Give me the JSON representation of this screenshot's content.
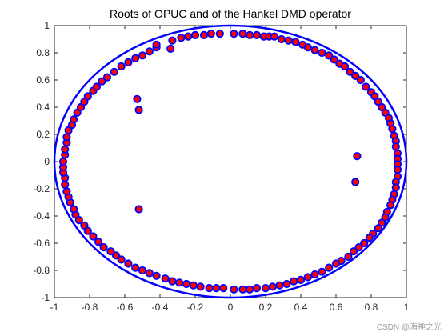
{
  "chart_data": {
    "type": "scatter",
    "title": "Roots of OPUC and of the Hankel DMD operator",
    "xlabel": "",
    "ylabel": "",
    "xlim": [
      -1,
      1
    ],
    "ylim": [
      -1,
      1
    ],
    "grid": false,
    "legend": "none",
    "x_ticks": [
      -1,
      -0.8,
      -0.6,
      -0.4,
      -0.2,
      0,
      0.2,
      0.4,
      0.6,
      0.8,
      1
    ],
    "y_ticks": [
      -1,
      -0.8,
      -0.6,
      -0.4,
      -0.2,
      0,
      0.2,
      0.4,
      0.6,
      0.8,
      1
    ],
    "x_tick_labels": [
      "-1",
      "-0.8",
      "-0.6",
      "-0.4",
      "-0.2",
      "0",
      "0.2",
      "0.4",
      "0.6",
      "0.8",
      "1"
    ],
    "y_tick_labels": [
      "-1",
      "-0.8",
      "-0.6",
      "-0.4",
      "-0.2",
      "0",
      "0.2",
      "0.4",
      "0.6",
      "0.8",
      "1"
    ],
    "unit_circle": {
      "center": [
        0,
        0
      ],
      "radius": 1,
      "color": "#0000ff"
    },
    "series": [
      {
        "marker": "circle-filled-red-blue-edge",
        "face_color": "#ff0000",
        "edge_color": "#0000ff",
        "points": [
          [
            0.02,
            0.94
          ],
          [
            0.07,
            0.94
          ],
          [
            0.11,
            0.93
          ],
          [
            0.15,
            0.93
          ],
          [
            0.19,
            0.92
          ],
          [
            0.22,
            0.92
          ],
          [
            0.25,
            0.92
          ],
          [
            0.29,
            0.9
          ],
          [
            0.33,
            0.89
          ],
          [
            0.37,
            0.88
          ],
          [
            0.41,
            0.86
          ],
          [
            0.44,
            0.84
          ],
          [
            0.48,
            0.82
          ],
          [
            0.52,
            0.8
          ],
          [
            0.56,
            0.78
          ],
          [
            0.59,
            0.75
          ],
          [
            0.62,
            0.72
          ],
          [
            0.65,
            0.7
          ],
          [
            0.68,
            0.66
          ],
          [
            0.71,
            0.63
          ],
          [
            0.74,
            0.6
          ],
          [
            0.77,
            0.55
          ],
          [
            0.8,
            0.51
          ],
          [
            0.82,
            0.48
          ],
          [
            0.84,
            0.44
          ],
          [
            0.86,
            0.4
          ],
          [
            0.88,
            0.36
          ],
          [
            0.9,
            0.32
          ],
          [
            0.91,
            0.28
          ],
          [
            0.92,
            0.24
          ],
          [
            0.93,
            0.19
          ],
          [
            0.94,
            0.15
          ],
          [
            0.94,
            0.11
          ],
          [
            0.95,
            0.06
          ],
          [
            0.95,
            0.02
          ],
          [
            0.95,
            -0.02
          ],
          [
            0.95,
            -0.06
          ],
          [
            0.95,
            -0.11
          ],
          [
            0.94,
            -0.15
          ],
          [
            0.94,
            -0.19
          ],
          [
            0.93,
            -0.24
          ],
          [
            0.92,
            -0.28
          ],
          [
            0.91,
            -0.32
          ],
          [
            0.89,
            -0.37
          ],
          [
            0.88,
            -0.41
          ],
          [
            0.86,
            -0.45
          ],
          [
            0.84,
            -0.49
          ],
          [
            0.81,
            -0.53
          ],
          [
            0.79,
            -0.56
          ],
          [
            0.76,
            -0.6
          ],
          [
            0.73,
            -0.63
          ],
          [
            0.7,
            -0.66
          ],
          [
            0.67,
            -0.7
          ],
          [
            0.63,
            -0.73
          ],
          [
            0.6,
            -0.75
          ],
          [
            0.56,
            -0.78
          ],
          [
            0.52,
            -0.81
          ],
          [
            0.48,
            -0.83
          ],
          [
            0.44,
            -0.85
          ],
          [
            0.4,
            -0.87
          ],
          [
            0.36,
            -0.88
          ],
          [
            0.32,
            -0.9
          ],
          [
            0.28,
            -0.91
          ],
          [
            0.24,
            -0.92
          ],
          [
            0.2,
            -0.93
          ],
          [
            0.15,
            -0.93
          ],
          [
            0.11,
            -0.94
          ],
          [
            0.07,
            -0.94
          ],
          [
            0.02,
            -0.94
          ],
          [
            -0.04,
            -0.93
          ],
          [
            -0.08,
            -0.93
          ],
          [
            -0.12,
            -0.93
          ],
          [
            -0.17,
            -0.92
          ],
          [
            -0.21,
            -0.91
          ],
          [
            -0.25,
            -0.9
          ],
          [
            -0.29,
            -0.89
          ],
          [
            -0.33,
            -0.88
          ],
          [
            -0.37,
            -0.86
          ],
          [
            -0.42,
            -0.84
          ],
          [
            -0.46,
            -0.82
          ],
          [
            -0.5,
            -0.8
          ],
          [
            -0.54,
            -0.78
          ],
          [
            -0.58,
            -0.75
          ],
          [
            -0.62,
            -0.72
          ],
          [
            -0.65,
            -0.69
          ],
          [
            -0.68,
            -0.66
          ],
          [
            -0.72,
            -0.63
          ],
          [
            -0.75,
            -0.59
          ],
          [
            -0.78,
            -0.55
          ],
          [
            -0.81,
            -0.51
          ],
          [
            -0.83,
            -0.47
          ],
          [
            -0.86,
            -0.43
          ],
          [
            -0.88,
            -0.39
          ],
          [
            -0.89,
            -0.35
          ],
          [
            -0.91,
            -0.3
          ],
          [
            -0.92,
            -0.26
          ],
          [
            -0.93,
            -0.22
          ],
          [
            -0.94,
            -0.17
          ],
          [
            -0.94,
            -0.12
          ],
          [
            -0.95,
            -0.08
          ],
          [
            -0.95,
            -0.04
          ],
          [
            -0.95,
            0.0
          ],
          [
            -0.94,
            0.05
          ],
          [
            -0.94,
            0.09
          ],
          [
            -0.93,
            0.14
          ],
          [
            -0.93,
            0.18
          ],
          [
            -0.92,
            0.23
          ],
          [
            -0.9,
            0.27
          ],
          [
            -0.89,
            0.31
          ],
          [
            -0.87,
            0.36
          ],
          [
            -0.85,
            0.4
          ],
          [
            -0.83,
            0.44
          ],
          [
            -0.81,
            0.48
          ],
          [
            -0.78,
            0.52
          ],
          [
            -0.76,
            0.55
          ],
          [
            -0.73,
            0.59
          ],
          [
            -0.7,
            0.62
          ],
          [
            -0.66,
            0.66
          ],
          [
            -0.62,
            0.7
          ],
          [
            -0.58,
            0.73
          ],
          [
            -0.54,
            0.76
          ],
          [
            -0.5,
            0.78
          ],
          [
            -0.46,
            0.81
          ],
          [
            -0.42,
            0.84
          ],
          [
            -0.33,
            0.89
          ],
          [
            -0.28,
            0.91
          ],
          [
            -0.24,
            0.92
          ],
          [
            -0.2,
            0.93
          ],
          [
            -0.15,
            0.93
          ],
          [
            -0.11,
            0.94
          ],
          [
            -0.06,
            0.94
          ],
          [
            -0.34,
            0.83
          ],
          [
            -0.42,
            0.86
          ],
          [
            -0.53,
            0.46
          ],
          [
            -0.52,
            0.38
          ],
          [
            0.72,
            0.04
          ],
          [
            0.71,
            -0.15
          ],
          [
            -0.52,
            -0.35
          ]
        ]
      }
    ]
  },
  "watermark": "CSDN @海神之光"
}
